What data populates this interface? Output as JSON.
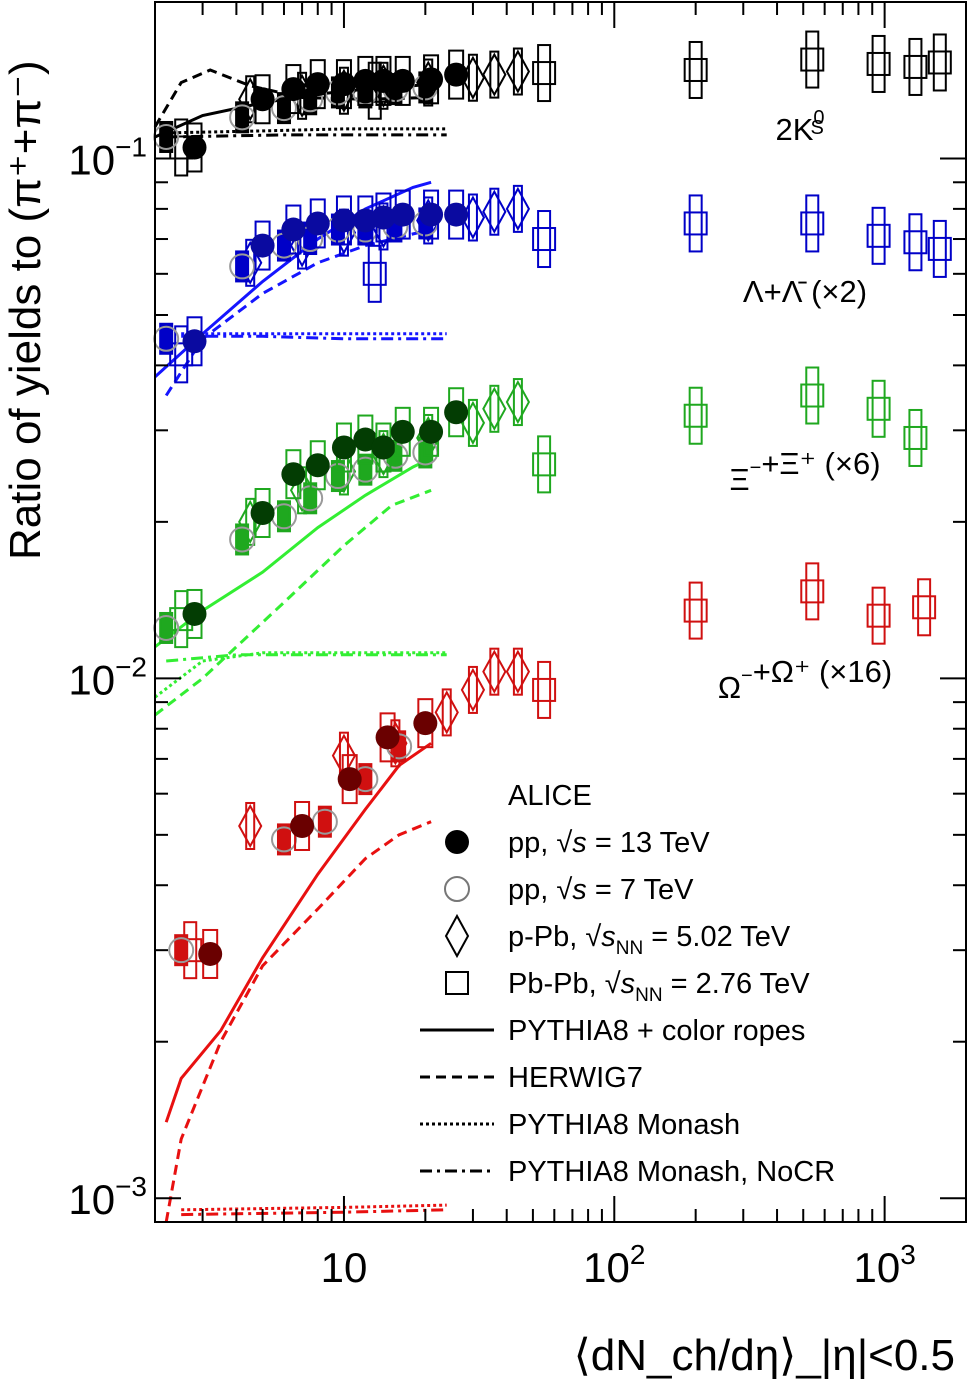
{
  "chart_data": {
    "type": "scatter",
    "title": "",
    "xlabel": "⟨dN_ch/dη⟩_|η|<0.5",
    "ylabel": "Ratio of yields to (π⁺+π⁻)",
    "xscale": "log",
    "yscale": "log",
    "xlim": [
      2.0,
      2000
    ],
    "ylim": [
      0.0009,
      0.2
    ],
    "x_ticks": [
      {
        "value": 10,
        "label": "10"
      },
      {
        "value": 100,
        "label": "10^2"
      },
      {
        "value": 1000,
        "label": "10^3"
      }
    ],
    "y_ticks": [
      {
        "value": 0.001,
        "label": "10^−3"
      },
      {
        "value": 0.01,
        "label": "10^−2"
      },
      {
        "value": 0.1,
        "label": "10^−1"
      }
    ],
    "grid": false,
    "legend_position": "bottom-right",
    "colors": {
      "k0s": "#000000",
      "lambda": "#0000c8",
      "xi": "#1fa81f",
      "omega": "#d01010",
      "k0s_mc": "#000000",
      "lambda_mc": "#1515ff",
      "xi_mc": "#33ee33",
      "omega_mc": "#e81010",
      "k0s_13": "#000000",
      "lambda_13": "#0a0aa0",
      "xi_13": "#033d03",
      "omega_13": "#6a0000"
    },
    "species": [
      {
        "key": "k0s",
        "label_main": "2K",
        "label_sup": "0",
        "label_sub": "S",
        "label_rest": "",
        "pp13": [
          [
            2.8,
            0.105
          ],
          [
            5.0,
            0.13
          ],
          [
            6.5,
            0.136
          ],
          [
            8.0,
            0.139
          ],
          [
            10.0,
            0.139
          ],
          [
            12.0,
            0.141
          ],
          [
            14.0,
            0.141
          ],
          [
            16.5,
            0.141
          ],
          [
            21.0,
            0.142
          ],
          [
            26.0,
            0.145
          ]
        ],
        "pp7": [
          [
            2.2,
            0.11
          ],
          [
            4.2,
            0.12
          ],
          [
            6.0,
            0.125
          ],
          [
            7.5,
            0.13
          ],
          [
            9.5,
            0.134
          ],
          [
            12.0,
            0.134
          ],
          [
            15.5,
            0.136
          ],
          [
            20.0,
            0.137
          ]
        ],
        "pPb": [
          [
            4.5,
            0.13
          ],
          [
            7.0,
            0.132
          ],
          [
            10.0,
            0.135
          ],
          [
            14.0,
            0.138
          ],
          [
            20.5,
            0.14
          ],
          [
            30.0,
            0.143
          ],
          [
            36.0,
            0.145
          ],
          [
            44.0,
            0.147
          ]
        ],
        "PbPb": [
          [
            2.5,
            0.105
          ],
          [
            13.0,
            0.135
          ],
          [
            55.0,
            0.146
          ],
          [
            200.0,
            0.148
          ],
          [
            540.0,
            0.155
          ],
          [
            950.0,
            0.152
          ],
          [
            1300.0,
            0.15
          ],
          [
            1600.0,
            0.153
          ]
        ],
        "rope": [
          [
            2.0,
            0.11
          ],
          [
            3.0,
            0.121
          ],
          [
            5.0,
            0.128
          ],
          [
            8.0,
            0.133
          ],
          [
            12.0,
            0.136
          ],
          [
            18.0,
            0.138
          ],
          [
            21.0,
            0.139
          ]
        ],
        "herwig": [
          [
            2.0,
            0.115
          ],
          [
            2.5,
            0.14
          ],
          [
            3.2,
            0.148
          ],
          [
            4.5,
            0.138
          ],
          [
            7.0,
            0.131
          ],
          [
            12.0,
            0.13
          ],
          [
            21.0,
            0.131
          ]
        ],
        "monash": [
          [
            2.2,
            0.112
          ],
          [
            5.0,
            0.113
          ],
          [
            10.0,
            0.114
          ],
          [
            24.0,
            0.114
          ]
        ],
        "nocr": [
          [
            2.2,
            0.11
          ],
          [
            6.0,
            0.111
          ],
          [
            12.0,
            0.111
          ],
          [
            24.0,
            0.111
          ]
        ]
      },
      {
        "key": "lambda",
        "label_main": "Λ+Λ̄",
        "label_sup": "",
        "label_sub": "",
        "label_rest": " (×2)",
        "pp13": [
          [
            2.8,
            0.0445
          ],
          [
            5.0,
            0.068
          ],
          [
            6.5,
            0.073
          ],
          [
            8.0,
            0.075
          ],
          [
            10.0,
            0.076
          ],
          [
            12.0,
            0.076
          ],
          [
            14.0,
            0.077
          ],
          [
            16.5,
            0.078
          ],
          [
            21.0,
            0.078
          ],
          [
            26.0,
            0.078
          ]
        ],
        "pp7": [
          [
            2.2,
            0.045
          ],
          [
            4.2,
            0.062
          ],
          [
            6.0,
            0.068
          ],
          [
            7.5,
            0.07
          ],
          [
            9.5,
            0.073
          ],
          [
            12.0,
            0.073
          ],
          [
            15.5,
            0.074
          ],
          [
            20.0,
            0.075
          ]
        ],
        "pPb": [
          [
            4.5,
            0.063
          ],
          [
            7.0,
            0.068
          ],
          [
            10.0,
            0.072
          ],
          [
            14.0,
            0.074
          ],
          [
            20.5,
            0.076
          ],
          [
            30.0,
            0.077
          ],
          [
            36.0,
            0.079
          ],
          [
            44.0,
            0.08
          ]
        ],
        "PbPb": [
          [
            2.5,
            0.042
          ],
          [
            13.0,
            0.06
          ],
          [
            55.0,
            0.07
          ],
          [
            200.0,
            0.075
          ],
          [
            540.0,
            0.075
          ],
          [
            950.0,
            0.071
          ],
          [
            1300.0,
            0.069
          ],
          [
            1600.0,
            0.067
          ]
        ],
        "rope": [
          [
            2.0,
            0.038
          ],
          [
            3.0,
            0.046
          ],
          [
            5.0,
            0.058
          ],
          [
            8.0,
            0.07
          ],
          [
            12.0,
            0.08
          ],
          [
            18.0,
            0.088
          ],
          [
            21.0,
            0.09
          ]
        ],
        "herwig": [
          [
            2.2,
            0.035
          ],
          [
            3.0,
            0.045
          ],
          [
            5.0,
            0.055
          ],
          [
            8.0,
            0.063
          ],
          [
            12.0,
            0.068
          ],
          [
            21.0,
            0.073
          ]
        ],
        "monash": [
          [
            2.5,
            0.046
          ],
          [
            5.0,
            0.046
          ],
          [
            10.0,
            0.046
          ],
          [
            24.0,
            0.046
          ]
        ],
        "nocr": [
          [
            2.5,
            0.0455
          ],
          [
            5.0,
            0.0455
          ],
          [
            10.0,
            0.045
          ],
          [
            24.0,
            0.045
          ]
        ]
      },
      {
        "key": "xi",
        "label_main": "Ξ",
        "label_sup": "−",
        "label_sub": "",
        "label_rest": "+Ξ⁺ (×6)",
        "pp13": [
          [
            2.8,
            0.0133
          ],
          [
            5.0,
            0.0208
          ],
          [
            6.5,
            0.0247
          ],
          [
            8.0,
            0.0257
          ],
          [
            10.0,
            0.0278
          ],
          [
            12.0,
            0.0288
          ],
          [
            14.0,
            0.0278
          ],
          [
            16.5,
            0.0298
          ],
          [
            21.0,
            0.0298
          ],
          [
            26.0,
            0.0325
          ]
        ],
        "pp7": [
          [
            2.2,
            0.0125
          ],
          [
            4.2,
            0.0185
          ],
          [
            6.0,
            0.0205
          ],
          [
            7.5,
            0.0222
          ],
          [
            9.5,
            0.0245
          ],
          [
            12.0,
            0.0252
          ],
          [
            15.5,
            0.0268
          ],
          [
            20.0,
            0.0272
          ]
        ],
        "pPb": [
          [
            4.5,
            0.02
          ],
          [
            7.0,
            0.023
          ],
          [
            10.0,
            0.025
          ],
          [
            14.0,
            0.027
          ],
          [
            20.5,
            0.029
          ],
          [
            30.0,
            0.031
          ],
          [
            36.0,
            0.033
          ],
          [
            44.0,
            0.034
          ]
        ],
        "PbPb": [
          [
            2.5,
            0.013
          ],
          [
            55.0,
            0.0258
          ],
          [
            200.0,
            0.032
          ],
          [
            540.0,
            0.035
          ],
          [
            950.0,
            0.033
          ],
          [
            1300.0,
            0.029
          ]
        ],
        "rope": [
          [
            2.0,
            0.0115
          ],
          [
            3.0,
            0.0135
          ],
          [
            5.0,
            0.016
          ],
          [
            8.0,
            0.0195
          ],
          [
            12.0,
            0.0225
          ],
          [
            18.0,
            0.0255
          ],
          [
            21.0,
            0.0265
          ]
        ],
        "herwig": [
          [
            2.0,
            0.0085
          ],
          [
            3.0,
            0.01
          ],
          [
            4.0,
            0.0115
          ],
          [
            6.0,
            0.014
          ],
          [
            10.0,
            0.018
          ],
          [
            15.0,
            0.0215
          ],
          [
            21.0,
            0.023
          ]
        ],
        "monash": [
          [
            2.0,
            0.0092
          ],
          [
            3.0,
            0.0108
          ],
          [
            5.0,
            0.0112
          ],
          [
            10.0,
            0.0112
          ],
          [
            24.0,
            0.0112
          ]
        ],
        "nocr": [
          [
            2.2,
            0.0108
          ],
          [
            4.0,
            0.0111
          ],
          [
            10.0,
            0.0111
          ],
          [
            24.0,
            0.0111
          ]
        ]
      },
      {
        "key": "omega",
        "label_main": "Ω",
        "label_sup": "−",
        "label_sub": "",
        "label_rest": "+Ω⁺ (×16)",
        "pp13": [
          [
            3.2,
            0.00295
          ],
          [
            7.0,
            0.0052
          ],
          [
            10.5,
            0.0064
          ],
          [
            14.5,
            0.0077
          ],
          [
            20.0,
            0.0082
          ]
        ],
        "pp7": [
          [
            2.5,
            0.003
          ],
          [
            6.0,
            0.0049
          ],
          [
            8.5,
            0.0053
          ],
          [
            12.0,
            0.0064
          ],
          [
            16.0,
            0.0074
          ]
        ],
        "pPb": [
          [
            4.5,
            0.0052
          ],
          [
            10.0,
            0.0071
          ],
          [
            15.5,
            0.0075
          ],
          [
            24.0,
            0.0086
          ],
          [
            30.0,
            0.0095
          ],
          [
            36.0,
            0.0103
          ],
          [
            44.0,
            0.0103
          ]
        ],
        "PbPb": [
          [
            2.7,
            0.003
          ],
          [
            55.0,
            0.0095
          ],
          [
            200.0,
            0.0135
          ],
          [
            540.0,
            0.0147
          ],
          [
            950.0,
            0.0132
          ],
          [
            1400.0,
            0.0137
          ]
        ],
        "rope": [
          [
            2.2,
            0.0014
          ],
          [
            2.5,
            0.0017
          ],
          [
            3.5,
            0.0021
          ],
          [
            5.0,
            0.0029
          ],
          [
            8.0,
            0.0042
          ],
          [
            12.0,
            0.0056
          ],
          [
            16.0,
            0.0068
          ],
          [
            21.0,
            0.0075
          ]
        ],
        "herwig": [
          [
            2.2,
            0.0009
          ],
          [
            2.5,
            0.0013
          ],
          [
            3.5,
            0.002
          ],
          [
            5.0,
            0.0028
          ],
          [
            8.0,
            0.0036
          ],
          [
            12.0,
            0.0045
          ],
          [
            16.0,
            0.005
          ],
          [
            21.0,
            0.0053
          ]
        ],
        "monash": [
          [
            2.5,
            0.00095
          ],
          [
            10.0,
            0.00096
          ],
          [
            24.0,
            0.00097
          ]
        ],
        "nocr": [
          [
            2.5,
            0.00093
          ],
          [
            10.0,
            0.00094
          ],
          [
            24.0,
            0.00095
          ]
        ]
      }
    ],
    "legend": {
      "experiment": "ALICE",
      "entries": [
        {
          "key": "pp13",
          "marker": "filled-circle",
          "prefix": "pp, ",
          "root": "s",
          "root_sub": "",
          "suffix": " = 13 TeV"
        },
        {
          "key": "pp7",
          "marker": "open-circle",
          "prefix": "pp, ",
          "root": "s",
          "root_sub": "",
          "suffix": " = 7 TeV"
        },
        {
          "key": "pPb",
          "marker": "open-diamond",
          "prefix": "p-Pb, ",
          "root": "s",
          "root_sub": "NN",
          "suffix": " = 5.02 TeV"
        },
        {
          "key": "PbPb",
          "marker": "open-square",
          "prefix": "Pb-Pb, ",
          "root": "s",
          "root_sub": "NN",
          "suffix": " = 2.76 TeV"
        },
        {
          "key": "rope",
          "line": "solid",
          "text": "PYTHIA8 + color ropes"
        },
        {
          "key": "herwig",
          "line": "dashed",
          "text": "HERWIG7"
        },
        {
          "key": "monash",
          "line": "dotted",
          "text": "PYTHIA8 Monash"
        },
        {
          "key": "nocr",
          "line": "dashdot",
          "text": "PYTHIA8 Monash, NoCR"
        }
      ]
    }
  }
}
